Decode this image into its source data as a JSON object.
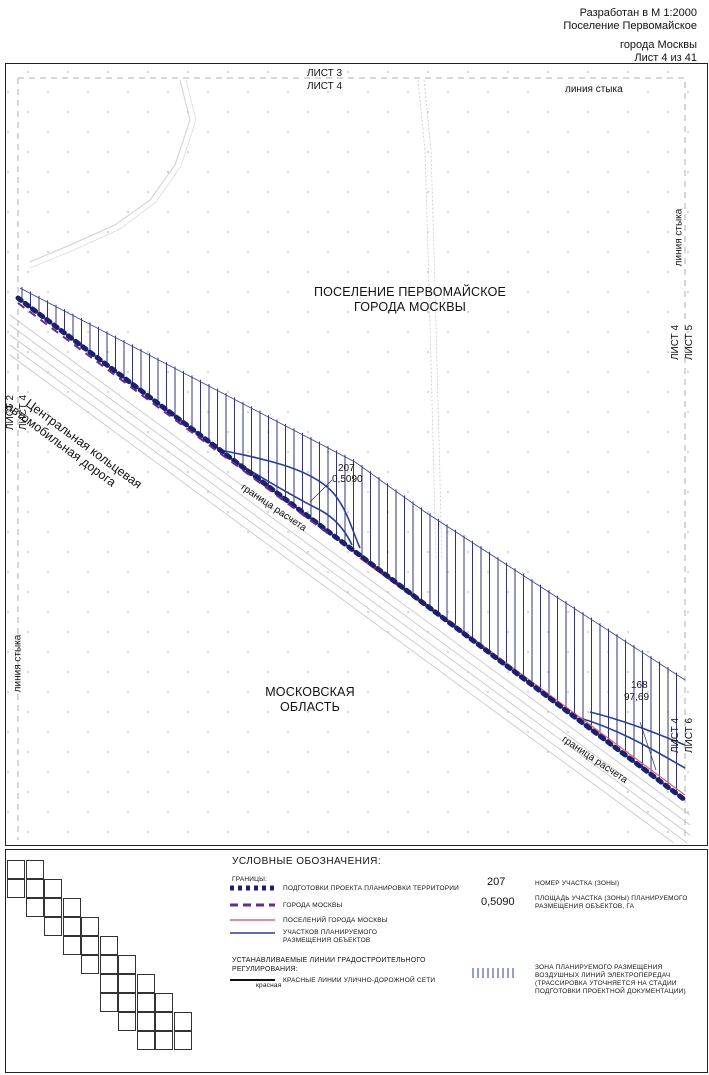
{
  "header": {
    "line1": "Разработан в М 1:2000",
    "line2": "Поселение Первомайское",
    "line3": "города Москвы",
    "line4": "Лист 4 из 41"
  },
  "map": {
    "top_sheet_upper": "ЛИСТ 3",
    "top_sheet_lower": "ЛИСТ 4",
    "top_join": "линия стыка",
    "right_join": "линия стыка",
    "right_sheet_a": "ЛИСТ 4",
    "right_sheet_b": "ЛИСТ 5",
    "left_sheet_a": "ЛИСТ 2",
    "left_sheet_b": "ЛИСТ 4",
    "left_join": "линия стыка",
    "right_bottom_sheet_a": "ЛИСТ 4",
    "right_bottom_sheet_b": "ЛИСТ 6",
    "settlement_line1": "ПОСЕЛЕНИЕ ПЕРВОМАЙСКОЕ",
    "settlement_line2": "ГОРОДА МОСКВЫ",
    "region_line1": "МОСКОВСКАЯ",
    "region_line2": "ОБЛАСТЬ",
    "road_line1": "Центральная кольцевая",
    "road_line2": "автомобильная дорога",
    "calc_boundary_1": "граница расчета",
    "calc_boundary_2": "граница расчета",
    "plot1_number": "207",
    "plot1_area": "0,5090",
    "plot2_number": "168",
    "plot2_area": "97,69"
  },
  "legend": {
    "title": "УСЛОВНЫЕ ОБОЗНАЧЕНИЯ:",
    "borders_heading": "ГРАНИЦЫ:",
    "item_planning": "ПОДГОТОВКИ ПРОЕКТА ПЛАНИРОВКИ ТЕРРИТОРИИ",
    "item_moscow": "ГОРОДА МОСКВЫ",
    "item_settlements": "ПОСЕЛЕНИЙ ГОРОДА МОСКВЫ",
    "item_plots_1": "УЧАСТКОВ ПЛАНИРУЕМОГО",
    "item_plots_2": "РАЗМЕЩЕНИЯ ОБЪЕКТОВ",
    "lines_heading_1": "УСТАНАВЛИВАЕМЫЕ ЛИНИИ ГРАДОСТРОИТЕЛЬНОГО",
    "lines_heading_2": "РЕГУЛИРОВАНИЯ:",
    "red_caption": "красная",
    "red_lines": "КРАСНЫЕ ЛИНИИ УЛИЧНО-ДОРОЖНОЙ СЕТИ",
    "sample_number": "207",
    "sample_number_desc": "НОМЕР УЧАСТКА (ЗОНЫ)",
    "sample_area": "0,5090",
    "sample_area_desc_1": "ПЛОЩАДЬ УЧАСТКА (ЗОНЫ) ПЛАНИРУЕМОГО",
    "sample_area_desc_2": "РАЗМЕЩЕНИЯ ОБЪЕКТОВ, ГА",
    "zone_desc_1": "ЗОНА ПЛАНИРУЕМОГО РАЗМЕЩЕНИЯ",
    "zone_desc_2": "ВОЗДУШНЫХ ЛИНИЙ ЭЛЕКТРОПЕРЕДАЧ",
    "zone_desc_3": "(ТРАССИРОВКА УТОЧНЯЕТСЯ НА СТАДИИ",
    "zone_desc_4": "ПОДГОТОВКИ ПРОЕКТНОЙ ДОКУМЕНТАЦИИ)"
  },
  "colors": {
    "navy": "#1a1f6e",
    "blue": "#2b3d9a",
    "purple": "#7a2a8a",
    "pink": "#e0607a",
    "red": "#d42020",
    "grey_line": "#c8c8c8",
    "dot": "#d8d8e4"
  }
}
